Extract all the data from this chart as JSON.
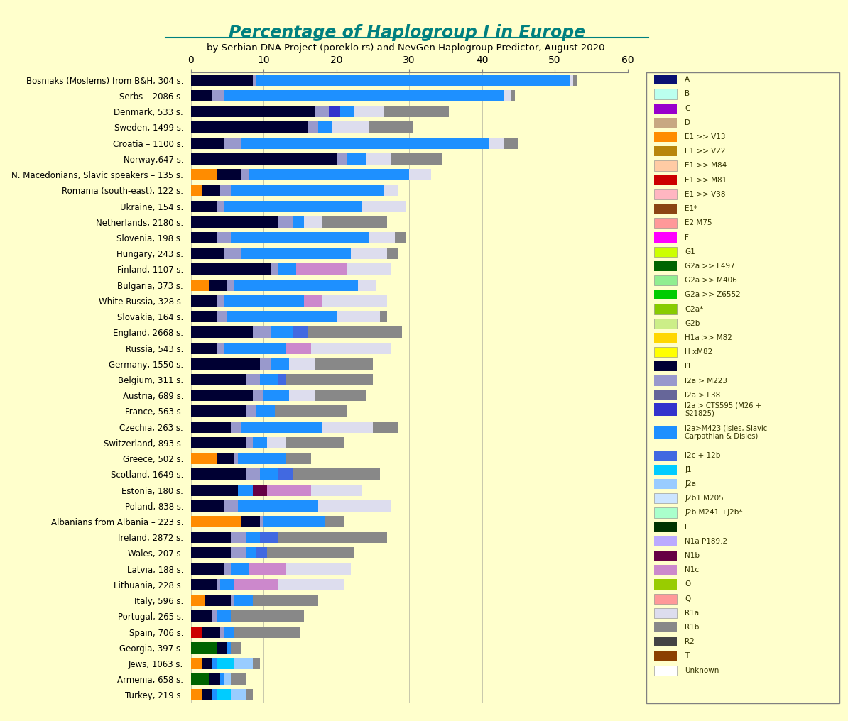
{
  "title": "Percentage of Haplogroup I in Europe",
  "subtitle": "by Serbian DNA Project (poreklo.rs) and NevGen Haplogroup Predictor, August 2020.",
  "background_color": "#FFFFCC",
  "title_color": "#008080",
  "xlim": [
    0,
    60
  ],
  "xticks": [
    0,
    10,
    20,
    30,
    40,
    50,
    60
  ],
  "countries": [
    "Bosniaks (Moslems) from B&H, 304 s.",
    "Serbs – 2086 s.",
    "Denmark, 533 s.",
    "Sweden, 1499 s.",
    "Croatia – 1100 s.",
    "Norway,647 s.",
    "N. Macedonians, Slavic speakers – 135 s.",
    "Romania (south-east), 122 s.",
    "Ukraine, 154 s.",
    "Netherlands, 2180 s.",
    "Slovenia, 198 s.",
    "Hungary, 243 s.",
    "Finland, 1107 s.",
    "Bulgaria, 373 s.",
    "White Russia, 328 s.",
    "Slovakia, 164 s.",
    "England, 2668 s.",
    "Russia, 543 s.",
    "Germany, 1550 s.",
    "Belgium, 311 s.",
    "Austria, 689 s.",
    "France, 563 s.",
    "Czechia, 263 s.",
    "Switzerland, 893 s.",
    "Greece, 502 s.",
    "Scotland, 1649 s.",
    "Estonia, 180 s.",
    "Poland, 838 s.",
    "Albanians from Albania – 223 s.",
    "Ireland, 2872 s.",
    "Wales, 207 s.",
    "Latvia, 188 s.",
    "Lithuania, 228 s.",
    "Italy, 596 s.",
    "Portugal, 265 s.",
    "Spain, 706 s.",
    "Georgia, 397 s.",
    "Jews, 1063 s.",
    "Armenia, 658 s.",
    "Turkey, 219 s."
  ],
  "haplogroups_order": [
    "A",
    "B",
    "C",
    "D",
    "E1>>V13",
    "E1>>V22",
    "E1>>M84",
    "E1>>M81",
    "E1>>V38",
    "E1*",
    "E2M75",
    "F",
    "G1",
    "G2a>>L497",
    "G2a>>M406",
    "G2a>>Z6552",
    "G2a*",
    "G2b",
    "H1a>>M82",
    "HxM82",
    "I1",
    "I2a>M223",
    "I2a>L38",
    "I2a>CTS595",
    "I2a>M423",
    "I2c+12b",
    "J1",
    "J2a",
    "J2b1M205",
    "J2bM241",
    "L",
    "N1aP189",
    "N1b",
    "N1c",
    "O",
    "Q",
    "R1a",
    "R1b",
    "R2",
    "T",
    "Unknown"
  ],
  "color_map": {
    "A": "#0A1172",
    "B": "#BBFFEE",
    "C": "#9900CC",
    "D": "#C8A882",
    "E1>>V13": "#FF8C00",
    "E1>>V22": "#B8860B",
    "E1>>M84": "#FFCBA4",
    "E1>>M81": "#CC0000",
    "E1>>V38": "#FFB6C1",
    "E1*": "#8B4513",
    "E2M75": "#FF9999",
    "F": "#FF00FF",
    "G1": "#CCFF00",
    "G2a>>L497": "#006400",
    "G2a>>M406": "#90EE90",
    "G2a>>Z6552": "#00CC00",
    "G2a*": "#88CC00",
    "G2b": "#CCEE88",
    "H1a>>M82": "#FFD700",
    "HxM82": "#FFFF00",
    "I1": "#000033",
    "I2a>M223": "#9999CC",
    "I2a>L38": "#666699",
    "I2a>CTS595": "#3333CC",
    "I2a>M423": "#1E90FF",
    "I2c+12b": "#4169E1",
    "J1": "#00CCFF",
    "J2a": "#99CCFF",
    "J2b1M205": "#CCE5FF",
    "J2bM241": "#AAFFCC",
    "L": "#003300",
    "N1aP189": "#BBAAFF",
    "N1b": "#660044",
    "N1c": "#CC88CC",
    "O": "#99CC00",
    "Q": "#FF9999",
    "R1a": "#DDDDEE",
    "R1b": "#888888",
    "R2": "#444444",
    "T": "#8B4000",
    "Unknown": "#FFFFFF"
  },
  "legend_labels": [
    [
      "A",
      "#0A1172"
    ],
    [
      "B",
      "#BBFFEE"
    ],
    [
      "C",
      "#9900CC"
    ],
    [
      "D",
      "#C8A882"
    ],
    [
      "E1 >> V13",
      "#FF8C00"
    ],
    [
      "E1 >> V22",
      "#B8860B"
    ],
    [
      "E1 >> M84",
      "#FFCBA4"
    ],
    [
      "E1 >> M81",
      "#CC0000"
    ],
    [
      "E1 >> V38",
      "#FFB6C1"
    ],
    [
      "E1*",
      "#8B4513"
    ],
    [
      "E2 M75",
      "#FF9999"
    ],
    [
      "F",
      "#FF00FF"
    ],
    [
      "G1",
      "#CCFF00"
    ],
    [
      "G2a >> L497",
      "#006400"
    ],
    [
      "G2a >> M406",
      "#90EE90"
    ],
    [
      "G2a >> Z6552",
      "#00CC00"
    ],
    [
      "G2a*",
      "#88CC00"
    ],
    [
      "G2b",
      "#CCEE88"
    ],
    [
      "H1a >> M82",
      "#FFD700"
    ],
    [
      "H xM82",
      "#FFFF00"
    ],
    [
      "I1",
      "#000033"
    ],
    [
      "I2a > M223",
      "#9999CC"
    ],
    [
      "I2a > L38",
      "#666699"
    ],
    [
      "I2a > CTS595 (M26 +\nS21825)",
      "#3333CC"
    ],
    [
      "I2a>M423 (Isles, Slavic-\nCarpathian & Disles)",
      "#1E90FF"
    ],
    [
      "I2c + 12b",
      "#4169E1"
    ],
    [
      "J1",
      "#00CCFF"
    ],
    [
      "J2a",
      "#99CCFF"
    ],
    [
      "J2b1 M205",
      "#CCE5FF"
    ],
    [
      "J2b M241 +J2b*",
      "#AAFFCC"
    ],
    [
      "L",
      "#003300"
    ],
    [
      "N1a P189.2",
      "#BBAAFF"
    ],
    [
      "N1b",
      "#660044"
    ],
    [
      "N1c",
      "#CC88CC"
    ],
    [
      "O",
      "#99CC00"
    ],
    [
      "Q",
      "#FF9999"
    ],
    [
      "R1a",
      "#DDDDEE"
    ],
    [
      "R1b",
      "#888888"
    ],
    [
      "R2",
      "#444444"
    ],
    [
      "T",
      "#8B4000"
    ],
    [
      "Unknown",
      "#FFFFFF"
    ]
  ],
  "bar_data": {
    "Bosniaks (Moslems) from B&H, 304 s.": {
      "I2a>M423": 43.0,
      "I1": 8.5,
      "I2a>M223": 0.5,
      "R1a": 0.5,
      "R1b": 0.5
    },
    "Serbs – 2086 s.": {
      "I2a>M423": 38.5,
      "I1": 3.0,
      "I2a>M223": 1.5,
      "R1a": 1.0,
      "R1b": 0.5
    },
    "Denmark, 533 s.": {
      "I1": 17.0,
      "I2a>M423": 2.0,
      "R1b": 9.0,
      "R1a": 4.0,
      "I2a>M223": 2.0,
      "I2a>CTS595": 1.5
    },
    "Sweden, 1499 s.": {
      "I1": 16.0,
      "I2a>M423": 2.0,
      "R1b": 6.0,
      "R1a": 5.0,
      "I2a>M223": 1.5
    },
    "Croatia – 1100 s.": {
      "I2a>M423": 34.0,
      "I1": 4.5,
      "I2a>M223": 2.5,
      "R1a": 2.0,
      "R1b": 2.0
    },
    "Norway,647 s.": {
      "I1": 20.0,
      "I2a>M423": 2.5,
      "R1b": 7.0,
      "R1a": 3.5,
      "I2a>M223": 1.5
    },
    "N. Macedonians, Slavic speakers – 135 s.": {
      "I2a>M423": 22.0,
      "I1": 3.5,
      "R1a": 3.0,
      "E1>>V13": 3.5,
      "I2a>M223": 1.0
    },
    "Romania (south-east), 122 s.": {
      "I2a>M423": 21.0,
      "I1": 2.5,
      "I2a>M223": 1.5,
      "R1a": 2.0,
      "E1>>V13": 1.5
    },
    "Ukraine, 154 s.": {
      "I2a>M423": 19.0,
      "I1": 3.5,
      "R1a": 6.0,
      "I2a>M223": 1.0
    },
    "Netherlands, 2180 s.": {
      "I1": 12.0,
      "I2a>M423": 1.5,
      "R1b": 9.0,
      "R1a": 2.5,
      "I2a>M223": 2.0
    },
    "Slovenia, 198 s.": {
      "I2a>M423": 19.0,
      "I1": 3.5,
      "I2a>M223": 2.0,
      "R1a": 3.5,
      "R1b": 1.5
    },
    "Hungary, 243 s.": {
      "I2a>M423": 15.0,
      "I1": 4.5,
      "I2a>M223": 2.5,
      "R1a": 5.0,
      "R1b": 1.5
    },
    "Finland, 1107 s.": {
      "I1": 11.0,
      "I2a>M423": 2.5,
      "N1c": 7.0,
      "R1a": 6.0,
      "I2a>M223": 1.0
    },
    "Bulgaria, 373 s.": {
      "I2a>M423": 17.0,
      "I1": 2.5,
      "E1>>V13": 2.5,
      "R1a": 2.5,
      "I2a>M223": 1.0
    },
    "White Russia, 328 s.": {
      "I2a>M423": 11.0,
      "I1": 3.5,
      "R1a": 9.0,
      "N1c": 2.5,
      "I2a>M223": 1.0
    },
    "Slovakia, 164 s.": {
      "I2a>M423": 15.0,
      "I1": 3.5,
      "R1a": 6.0,
      "I2a>M223": 1.5,
      "R1b": 1.0
    },
    "England, 2668 s.": {
      "I1": 8.5,
      "I2a>M423": 3.0,
      "R1b": 13.0,
      "I2a>M223": 2.5,
      "I2c+12b": 2.0
    },
    "Russia, 543 s.": {
      "I2a>M423": 8.5,
      "I1": 3.5,
      "R1a": 11.0,
      "N1c": 3.5,
      "I2a>M223": 1.0
    },
    "Germany, 1550 s.": {
      "I1": 9.5,
      "I2a>M423": 2.5,
      "R1b": 8.0,
      "R1a": 3.5,
      "I2a>M223": 1.5
    },
    "Belgium, 311 s.": {
      "I1": 7.5,
      "I2a>M423": 2.5,
      "R1b": 12.0,
      "I2a>M223": 2.0,
      "I2c+12b": 1.0
    },
    "Austria, 689 s.": {
      "I1": 8.5,
      "I2a>M423": 3.5,
      "R1b": 7.0,
      "R1a": 3.5,
      "I2a>M223": 1.5
    },
    "France, 563 s.": {
      "I1": 7.5,
      "I2a>M423": 2.5,
      "R1b": 10.0,
      "I2a>M223": 1.5
    },
    "Czechia, 263 s.": {
      "I2a>M423": 11.0,
      "I1": 5.5,
      "R1a": 7.0,
      "R1b": 3.5,
      "I2a>M223": 1.5
    },
    "Switzerland, 893 s.": {
      "I1": 7.5,
      "I2a>M423": 2.0,
      "R1b": 8.0,
      "R1a": 2.5,
      "I2a>M223": 1.0
    },
    "Greece, 502 s.": {
      "I2a>M423": 6.5,
      "I1": 2.5,
      "E1>>V13": 3.5,
      "R1b": 3.5,
      "I2a>M223": 0.5
    },
    "Scotland, 1649 s.": {
      "I1": 7.5,
      "I2a>M423": 2.5,
      "R1b": 12.0,
      "I2a>M223": 2.0,
      "I2c+12b": 2.0
    },
    "Estonia, 180 s.": {
      "I1": 6.5,
      "I2a>M423": 2.0,
      "R1a": 7.0,
      "N1c": 6.0,
      "N1b": 2.0
    },
    "Poland, 838 s.": {
      "I2a>M423": 11.0,
      "I1": 4.5,
      "R1a": 10.0,
      "I2a>M223": 2.0
    },
    "Albanians from Albania – 223 s.": {
      "I2a>M423": 8.5,
      "I1": 2.5,
      "E1>>V13": 7.0,
      "R1b": 2.5,
      "I2a>M223": 0.5
    },
    "Ireland, 2872 s.": {
      "I1": 5.5,
      "I2a>M423": 2.0,
      "R1b": 15.0,
      "I2a>M223": 2.0,
      "I2c+12b": 2.5
    },
    "Wales, 207 s.": {
      "I1": 5.5,
      "I2a>M423": 1.5,
      "R1b": 12.0,
      "I2a>M223": 2.0,
      "I2c+12b": 1.5
    },
    "Latvia, 188 s.": {
      "I1": 4.5,
      "I2a>M423": 2.5,
      "R1a": 9.0,
      "N1c": 5.0,
      "I2a>M223": 1.0
    },
    "Lithuania, 228 s.": {
      "I1": 3.5,
      "I2a>M423": 2.0,
      "R1a": 9.0,
      "N1c": 6.0,
      "I2a>M223": 0.5
    },
    "Italy, 596 s.": {
      "I1": 3.5,
      "I2a>M423": 2.5,
      "R1b": 9.0,
      "E1>>V13": 2.0,
      "I2a>M223": 0.5
    },
    "Portugal, 265 s.": {
      "I1": 3.0,
      "I2a>M423": 2.0,
      "R1b": 10.0,
      "I2a>M223": 0.5
    },
    "Spain, 706 s.": {
      "I1": 2.5,
      "I2a>M423": 1.5,
      "R1b": 9.0,
      "E1>>M81": 1.5,
      "I2a>M223": 0.5
    },
    "Georgia, 397 s.": {
      "I1": 1.5,
      "G2a>>L497": 3.5,
      "R1b": 1.5,
      "I2a>M423": 0.5
    },
    "Jews, 1063 s.": {
      "I1": 1.5,
      "J1": 2.5,
      "J2a": 2.5,
      "E1>>V13": 1.5,
      "I2a>M423": 0.5,
      "R1b": 1.0
    },
    "Armenia, 658 s.": {
      "I1": 1.5,
      "G2a>>L497": 2.5,
      "R1b": 2.0,
      "I2a>M423": 0.5,
      "J2a": 1.0
    },
    "Turkey, 219 s.": {
      "I1": 1.5,
      "J1": 2.0,
      "J2a": 2.0,
      "E1>>V13": 1.5,
      "I2a>M423": 0.5,
      "R1b": 1.0
    }
  }
}
